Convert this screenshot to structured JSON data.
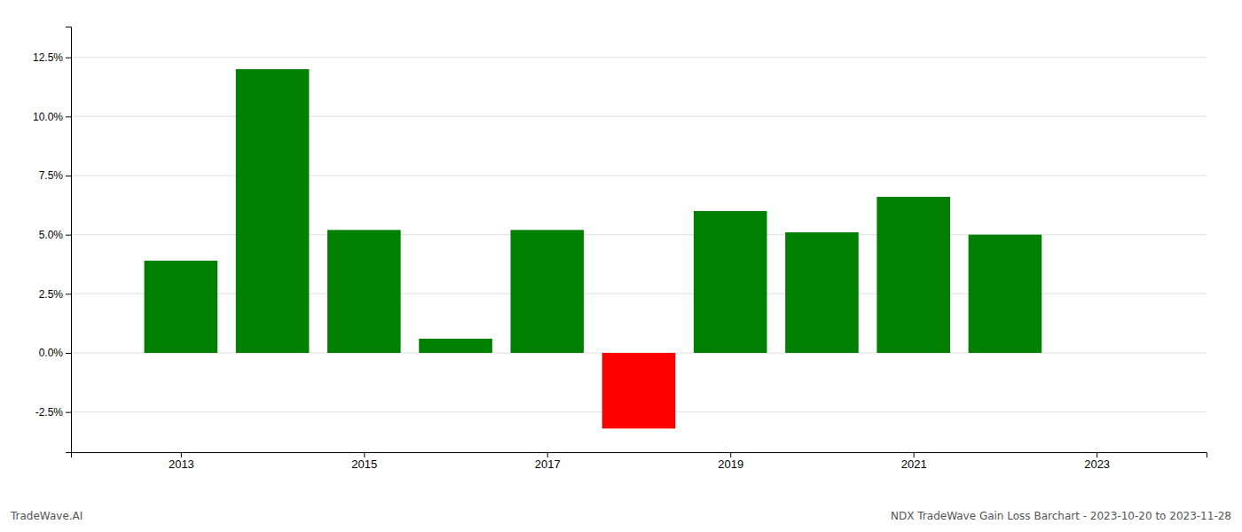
{
  "chart_data": {
    "type": "bar",
    "x": [
      2013,
      2014,
      2015,
      2016,
      2017,
      2018,
      2019,
      2020,
      2021,
      2022
    ],
    "values": [
      0.039,
      0.12,
      0.052,
      0.006,
      0.052,
      -0.032,
      0.06,
      0.051,
      0.066,
      0.05
    ],
    "colors": [
      "#008000",
      "#008000",
      "#008000",
      "#008000",
      "#008000",
      "#ff0000",
      "#008000",
      "#008000",
      "#008000",
      "#008000"
    ],
    "xlim": [
      2011.8,
      2024.2
    ],
    "xticks": [
      2013,
      2015,
      2017,
      2019,
      2021,
      2023
    ],
    "ylim": [
      -0.042,
      0.138
    ],
    "yticks": [
      {
        "value": -0.025,
        "label": "-2.5%"
      },
      {
        "value": 0.0,
        "label": "0.0%"
      },
      {
        "value": 0.025,
        "label": "2.5%"
      },
      {
        "value": 0.05,
        "label": "5.0%"
      },
      {
        "value": 0.075,
        "label": "7.5%"
      },
      {
        "value": 0.1,
        "label": "10.0%"
      },
      {
        "value": 0.125,
        "label": "12.5%"
      }
    ],
    "grid": true,
    "annotations": [
      "TradeWave.AI",
      "NDX TradeWave Gain Loss Barchart - 2023-10-20 to 2023-11-28"
    ]
  }
}
